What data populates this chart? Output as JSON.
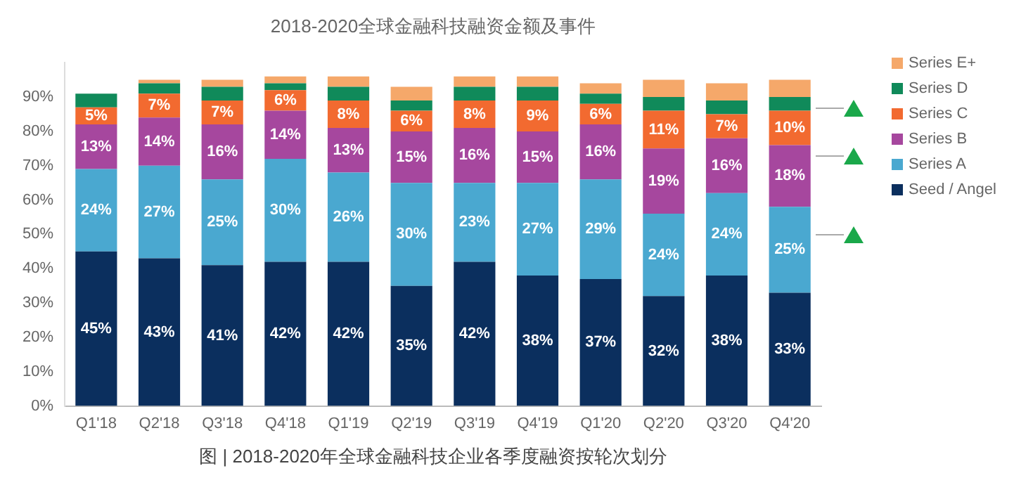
{
  "chart_data": {
    "type": "bar",
    "title": "2018-2020全球金融科技融资金额及事件",
    "stacked": true,
    "categories": [
      "Q1'18",
      "Q2'18",
      "Q3'18",
      "Q4'18",
      "Q1'19",
      "Q2'19",
      "Q3'19",
      "Q4'19",
      "Q1'20",
      "Q2'20",
      "Q3'20",
      "Q4'20"
    ],
    "series": [
      {
        "name": "Seed / Angel",
        "color": "#0b2f5e",
        "values": [
          45,
          43,
          41,
          42,
          42,
          35,
          42,
          38,
          37,
          32,
          38,
          33
        ],
        "value_labels": [
          "45%",
          "43%",
          "41%",
          "42%",
          "42%",
          "35%",
          "42%",
          "38%",
          "37%",
          "32%",
          "38%",
          "33%"
        ]
      },
      {
        "name": "Series A",
        "color": "#4aa8d0",
        "values": [
          24,
          27,
          25,
          30,
          26,
          30,
          23,
          27,
          29,
          24,
          24,
          25
        ],
        "value_labels": [
          "24%",
          "27%",
          "25%",
          "30%",
          "26%",
          "30%",
          "23%",
          "27%",
          "29%",
          "24%",
          "24%",
          "25%"
        ]
      },
      {
        "name": "Series B",
        "color": "#a6479e",
        "values": [
          13,
          14,
          16,
          14,
          13,
          15,
          16,
          15,
          16,
          19,
          16,
          18
        ],
        "value_labels": [
          "13%",
          "14%",
          "16%",
          "14%",
          "13%",
          "15%",
          "16%",
          "15%",
          "16%",
          "19%",
          "16%",
          "18%"
        ]
      },
      {
        "name": "Series C",
        "color": "#f26a30",
        "values": [
          5,
          7,
          7,
          6,
          8,
          6,
          8,
          9,
          6,
          11,
          7,
          10
        ],
        "value_labels": [
          "5%",
          "7%",
          "7%",
          "6%",
          "8%",
          "6%",
          "8%",
          "9%",
          "6%",
          "11%",
          "7%",
          "10%"
        ]
      },
      {
        "name": "Series D",
        "color": "#108a5a",
        "values": [
          4,
          3,
          4,
          2,
          4,
          3,
          4,
          4,
          3,
          4,
          4,
          4
        ]
      },
      {
        "name": "Series E+",
        "color": "#f5a86a",
        "values": [
          null,
          1,
          2,
          2,
          3,
          4,
          3,
          3,
          3,
          5,
          5,
          5
        ]
      }
    ],
    "ylim": [
      0,
      100
    ],
    "yticks": [
      {
        "value": 0,
        "label": "0%"
      },
      {
        "value": 10,
        "label": "10%"
      },
      {
        "value": 20,
        "label": "20%"
      },
      {
        "value": 30,
        "label": "30%"
      },
      {
        "value": 40,
        "label": "40%"
      },
      {
        "value": 50,
        "label": "50%"
      },
      {
        "value": 60,
        "label": "60%"
      },
      {
        "value": 70,
        "label": "70%"
      },
      {
        "value": 80,
        "label": "80%"
      },
      {
        "value": 90,
        "label": "90%"
      }
    ],
    "grid": false,
    "legend": "right",
    "annotations": [
      "图 | 2018-2020年全球金融科技企业各季度融资按轮次划分"
    ]
  }
}
